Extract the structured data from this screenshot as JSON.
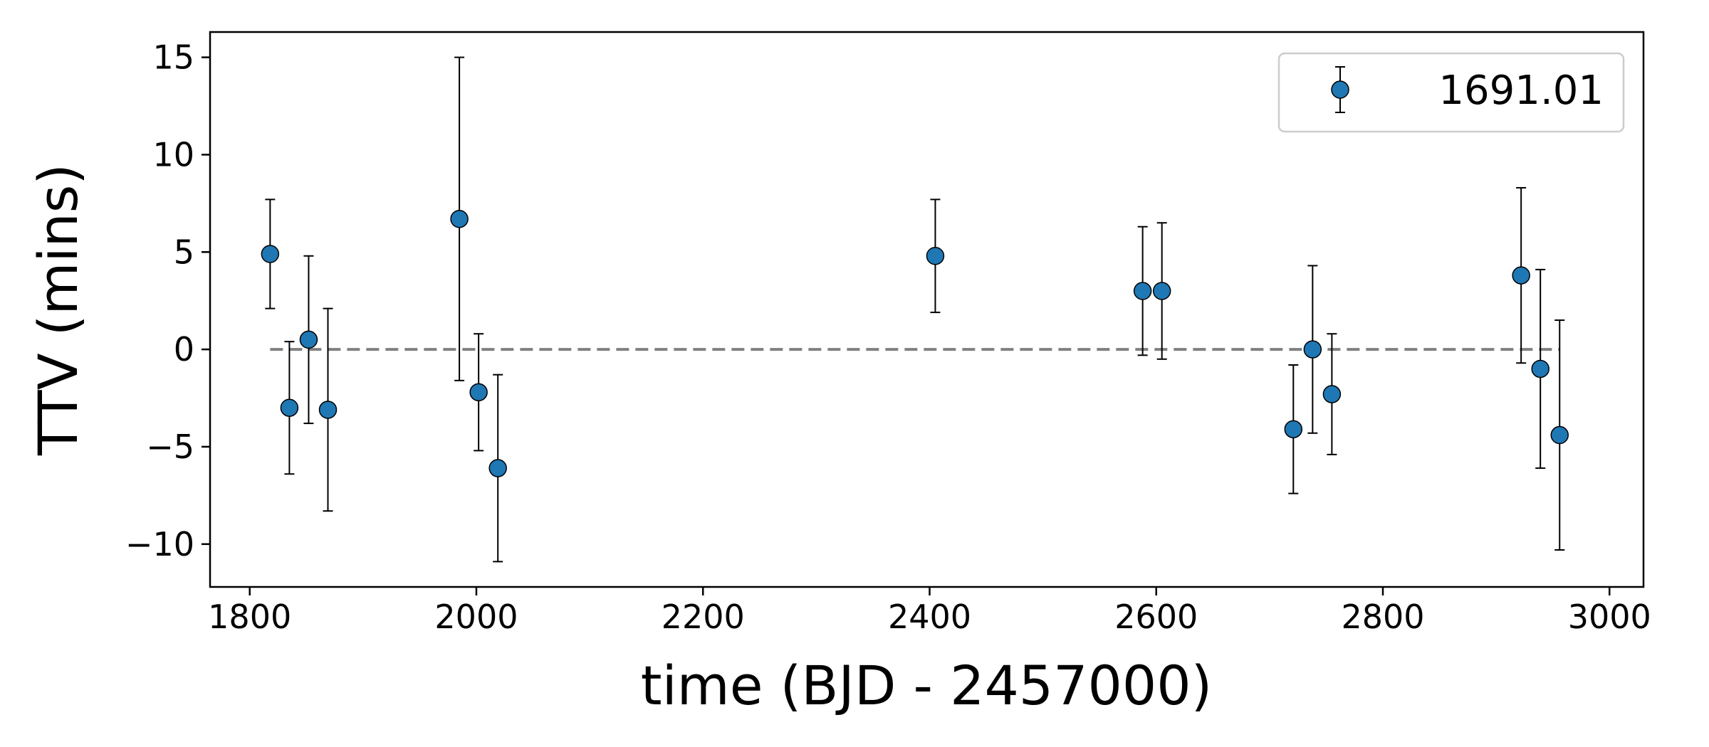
{
  "chart_data": {
    "type": "scatter",
    "title": "",
    "xlabel": "time (BJD - 2457000)",
    "ylabel": "TTV (mins)",
    "xlim": [
      1765,
      3030
    ],
    "ylim": [
      -12.2,
      16.3
    ],
    "xticks": [
      1800,
      2000,
      2200,
      2400,
      2600,
      2800,
      3000
    ],
    "xtick_labels": [
      "1800",
      "2000",
      "2200",
      "2400",
      "2600",
      "2800",
      "3000"
    ],
    "yticks": [
      -10,
      -5,
      0,
      5,
      10,
      15
    ],
    "ytick_labels": [
      "−10",
      "−5",
      "0",
      "5",
      "10",
      "15"
    ],
    "grid": false,
    "legend": {
      "position": "top-right",
      "entries": [
        "1691.01"
      ]
    },
    "reference_line": {
      "y": 0,
      "x_start": 1818,
      "x_end": 2956,
      "style": "dashed",
      "color": "#808080"
    },
    "series": [
      {
        "name": "1691.01",
        "color": "#1f77b4",
        "edge_color": "#000000",
        "points": [
          {
            "x": 1818,
            "y": 4.9,
            "yerr": 2.8
          },
          {
            "x": 1835,
            "y": -3.0,
            "yerr": 3.4
          },
          {
            "x": 1852,
            "y": 0.5,
            "yerr": 4.3
          },
          {
            "x": 1869,
            "y": -3.1,
            "yerr": 5.2
          },
          {
            "x": 1985,
            "y": 6.7,
            "yerr": 8.3
          },
          {
            "x": 2002,
            "y": -2.2,
            "yerr": 3.0
          },
          {
            "x": 2019,
            "y": -6.1,
            "yerr": 4.8
          },
          {
            "x": 2405,
            "y": 4.8,
            "yerr": 2.9
          },
          {
            "x": 2588,
            "y": 3.0,
            "yerr": 3.3
          },
          {
            "x": 2605,
            "y": 3.0,
            "yerr": 3.5
          },
          {
            "x": 2721,
            "y": -4.1,
            "yerr": 3.3
          },
          {
            "x": 2738,
            "y": 0.0,
            "yerr": 4.3
          },
          {
            "x": 2755,
            "y": -2.3,
            "yerr": 3.1
          },
          {
            "x": 2922,
            "y": 3.8,
            "yerr": 4.5
          },
          {
            "x": 2939,
            "y": -1.0,
            "yerr": 5.1
          },
          {
            "x": 2956,
            "y": -4.4,
            "yerr": 5.9
          }
        ]
      }
    ]
  }
}
